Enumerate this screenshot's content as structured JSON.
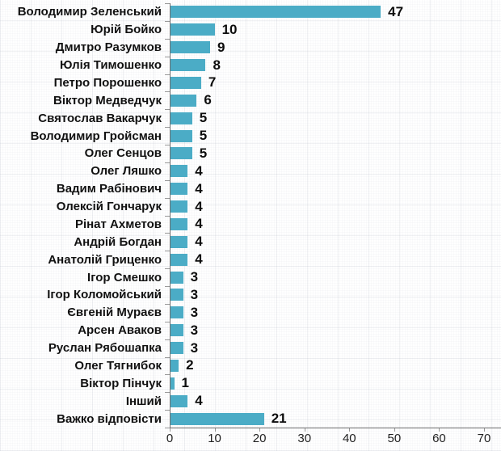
{
  "chart_data": {
    "type": "bar",
    "orientation": "horizontal",
    "title": "",
    "categories": [
      "Володимир Зеленський",
      "Юрій Бойко",
      "Дмитро Разумков",
      "Юлія Тимошенко",
      "Петро Порошенко",
      "Віктор Медведчук",
      "Святослав Вакарчук",
      "Володимир Гройсман",
      "Олег Сенцов",
      "Олег Ляшко",
      "Вадим Рабінович",
      "Олексій Гончарук",
      "Рінат Ахметов",
      "Андрій Богдан",
      "Анатолій Гриценко",
      "Ігор Смешко",
      "Ігор Коломойський",
      "Євгеній Мураєв",
      "Арсен Аваков",
      "Руслан Рябошапка",
      "Олег Тягнибок",
      "Віктор Пінчук",
      "Інший",
      "Важко відповісти"
    ],
    "values": [
      47,
      10,
      9,
      8,
      7,
      6,
      5,
      5,
      5,
      4,
      4,
      4,
      4,
      4,
      4,
      3,
      3,
      3,
      3,
      3,
      2,
      1,
      4,
      21
    ],
    "value_labels_shown": true,
    "xlabel": "",
    "ylabel": "",
    "xlim": [
      0,
      70
    ],
    "x_ticks": [
      0,
      10,
      20,
      30,
      40,
      50,
      60,
      70
    ],
    "grid": "subtle-paper-texture",
    "legend": "none"
  },
  "colors": {
    "bar": "#4BACC6",
    "axis": "#6e6e6e",
    "category_tick": "#999999",
    "category_text": "#111111",
    "value_text": "#0d0d0d",
    "axis_tick_text": "#222222",
    "background": "#ffffff"
  }
}
